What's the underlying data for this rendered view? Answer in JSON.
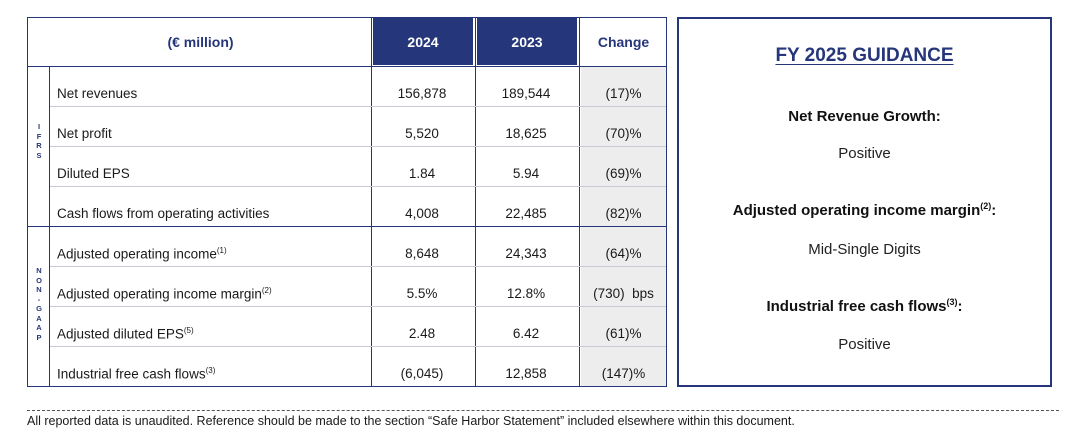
{
  "table": {
    "header": {
      "label": "(€ million)",
      "year1": "2024",
      "year2": "2023",
      "change": "Change"
    },
    "ifrs_letters": [
      "I",
      "F",
      "R",
      "S"
    ],
    "nongaap_letters": [
      "N",
      "O",
      "N",
      "-",
      "G",
      "A",
      "A",
      "P"
    ],
    "ifrs_rows": [
      {
        "name": "Net revenues",
        "sup": "",
        "v2024": "156,878",
        "v2023": "189,544",
        "change": "(17)%"
      },
      {
        "name": "Net profit",
        "sup": "",
        "v2024": "5,520",
        "v2023": "18,625",
        "change": "(70)%"
      },
      {
        "name": "Diluted EPS",
        "sup": "",
        "v2024": "1.84",
        "v2023": "5.94",
        "change": "(69)%"
      },
      {
        "name": "Cash flows from operating activities",
        "sup": "",
        "v2024": "4,008",
        "v2023": "22,485",
        "change": "(82)%"
      }
    ],
    "nongaap_rows": [
      {
        "name": "Adjusted operating income",
        "sup": "(1)",
        "v2024": "8,648",
        "v2023": "24,343",
        "change": "(64)%"
      },
      {
        "name": "Adjusted operating income margin",
        "sup": "(2)",
        "v2024": "5.5%",
        "v2023": "12.8%",
        "change": "(730)  bps"
      },
      {
        "name": "Adjusted diluted EPS",
        "sup": "(5)",
        "v2024": "2.48",
        "v2023": "6.42",
        "change": "(61)%"
      },
      {
        "name": "Industrial free cash flows",
        "sup": "(3)",
        "v2024": "(6,045)",
        "v2023": "12,858",
        "change": "(147)%"
      }
    ]
  },
  "guidance": {
    "title": "FY 2025 GUIDANCE",
    "items": [
      {
        "label": "Net Revenue Growth:",
        "sup": "",
        "after": "",
        "value": "Positive"
      },
      {
        "label": "Adjusted operating income margin",
        "sup": "(2)",
        "after": ":",
        "value": "Mid-Single Digits"
      },
      {
        "label": "Industrial free cash flows",
        "sup": "(3)",
        "after": ":",
        "value": "Positive"
      }
    ]
  },
  "footer": "All reported data is unaudited. Reference should be made to the section “Safe Harbor Statement” included elsewhere within this document."
}
